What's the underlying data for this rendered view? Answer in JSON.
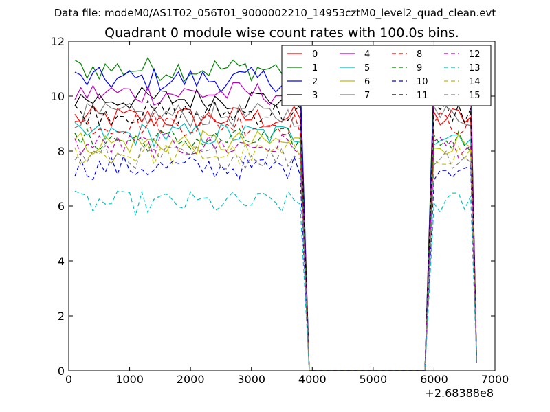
{
  "figure": {
    "suptitle": "Data file: modeM0/AS1T02_056T01_9000002210_14953cztM0_level2_quad_clean.evt",
    "title": "Quadrant 0 module wise count rates with 100.0s bins.",
    "x_offset_label": "+2.68388e8"
  },
  "chart_data": {
    "type": "line",
    "title": "Quadrant 0 module wise count rates with 100.0s bins.",
    "xlabel": "",
    "ylabel": "",
    "xlim": [
      0,
      7000
    ],
    "ylim": [
      0,
      12
    ],
    "x_ticks": [
      0,
      1000,
      2000,
      3000,
      4000,
      5000,
      6000,
      7000
    ],
    "x_tick_labels": [
      "0",
      "1000",
      "2000",
      "3000",
      "4000",
      "5000",
      "6000",
      "7000"
    ],
    "y_ticks": [
      0,
      2,
      4,
      6,
      8,
      10,
      12
    ],
    "y_tick_labels": [
      "0",
      "2",
      "4",
      "6",
      "8",
      "10",
      "12"
    ],
    "x_offset": "+2.68388e8",
    "grid": false,
    "legend": {
      "placement": "top-right",
      "columns": 4
    },
    "gap": {
      "start": 3950,
      "end": 5850
    },
    "series": [
      {
        "name": "0",
        "color": "#ff0000",
        "dash": "solid",
        "level": 9.2
      },
      {
        "name": "1",
        "color": "#008000",
        "dash": "solid",
        "level": 11.0
      },
      {
        "name": "2",
        "color": "#0000ff",
        "dash": "solid",
        "level": 10.6
      },
      {
        "name": "3",
        "color": "#000000",
        "dash": "solid",
        "level": 9.9
      },
      {
        "name": "4",
        "color": "#bf00bf",
        "dash": "solid",
        "level": 10.1
      },
      {
        "name": "5",
        "color": "#00bfbf",
        "dash": "solid",
        "level": 8.6
      },
      {
        "name": "6",
        "color": "#bfbf00",
        "dash": "solid",
        "level": 8.3
      },
      {
        "name": "7",
        "color": "#808080",
        "dash": "solid",
        "level": 9.3
      },
      {
        "name": "8",
        "color": "#ff0000",
        "dash": "dashed",
        "level": 9.0
      },
      {
        "name": "9",
        "color": "#008000",
        "dash": "dashed",
        "level": 8.4
      },
      {
        "name": "10",
        "color": "#0000ff",
        "dash": "dashed",
        "level": 7.4
      },
      {
        "name": "11",
        "color": "#000000",
        "dash": "dashed",
        "level": 9.4
      },
      {
        "name": "12",
        "color": "#bf00bf",
        "dash": "dashed",
        "level": 8.2
      },
      {
        "name": "13",
        "color": "#00bfbf",
        "dash": "dashed",
        "level": 6.1
      },
      {
        "name": "14",
        "color": "#bfbf00",
        "dash": "dashed",
        "level": 7.9
      },
      {
        "name": "15",
        "color": "#808080",
        "dash": "dashed",
        "level": 7.8
      }
    ]
  }
}
